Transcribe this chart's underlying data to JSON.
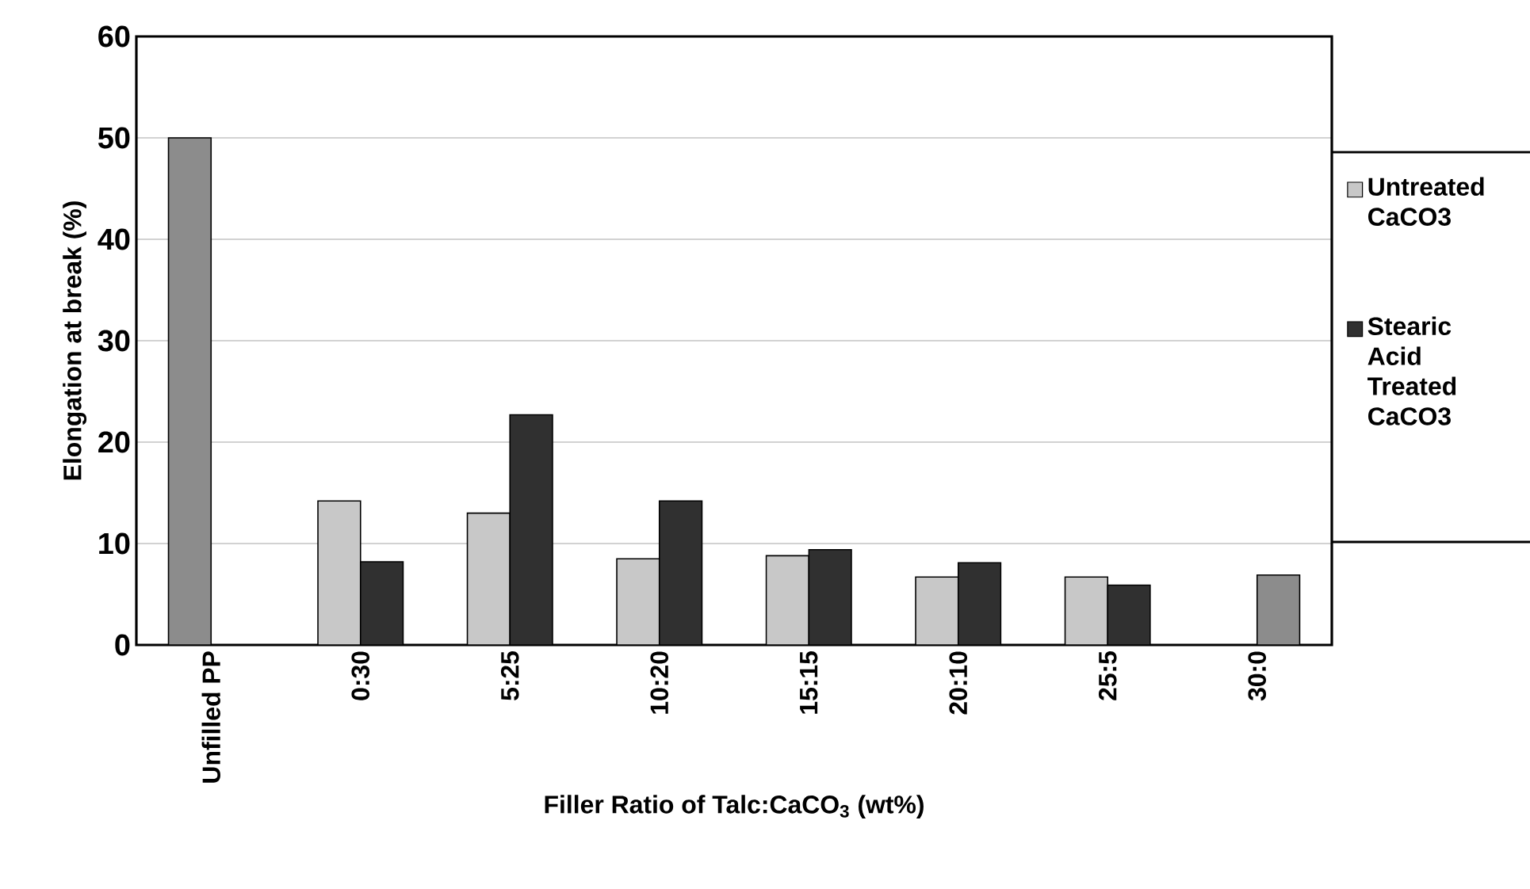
{
  "chart_data": {
    "type": "bar",
    "xlabel": "Filler Ratio of Talc:CaCO$_{3}$ (wt%)",
    "ylabel": "Elongation at break (%)",
    "categories": [
      "Unfilled PP",
      "0:30",
      "5:25",
      "10:20",
      "15:15",
      "20:10",
      "25:5",
      "30:0"
    ],
    "series": [
      {
        "name": "Untreated CaCO3",
        "color": "#c8c8c8",
        "colors": [
          "#8c8c8c",
          "#c8c8c8",
          "#c8c8c8",
          "#c8c8c8",
          "#c8c8c8",
          "#c8c8c8",
          "#c8c8c8",
          "#c8c8c8"
        ],
        "values": [
          50,
          14.2,
          13.0,
          8.5,
          8.8,
          6.7,
          6.7,
          null
        ]
      },
      {
        "name": "Stearic Acid Treated CaCO3",
        "color": "#303030",
        "colors": [
          "#303030",
          "#303030",
          "#303030",
          "#303030",
          "#303030",
          "#303030",
          "#303030",
          "#8c8c8c"
        ],
        "values": [
          null,
          8.2,
          22.7,
          14.2,
          9.4,
          8.1,
          5.9,
          6.9
        ]
      }
    ],
    "ylim": [
      0,
      60
    ],
    "yticks": [
      0,
      10,
      20,
      30,
      40,
      50,
      60
    ],
    "grid": "y",
    "legend": "right"
  }
}
